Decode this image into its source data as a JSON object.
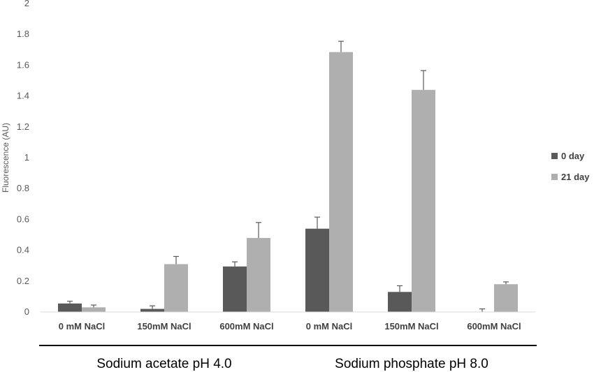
{
  "chart_data": {
    "type": "bar",
    "ylabel": "Fluorescence (AU)",
    "xlabel": "",
    "ylim": [
      0,
      2
    ],
    "yticks": [
      "0",
      "0.2",
      "0.4",
      "0.6",
      "0.8",
      "1",
      "1.2",
      "1.4",
      "1.6",
      "1.8",
      "2"
    ],
    "categories": [
      "0 mM NaCl",
      "150mM NaCl",
      "600mM NaCl",
      "0 mM NaCl",
      "150mM NaCl",
      "600mM NaCl"
    ],
    "groups": [
      {
        "label": "Sodium acetate pH 4.0",
        "start": 0,
        "end": 2
      },
      {
        "label": "Sodium phosphate pH 8.0",
        "start": 3,
        "end": 5
      }
    ],
    "series": [
      {
        "name": "0 day",
        "color": "#595959",
        "values": [
          0.055,
          0.02,
          0.295,
          0.54,
          0.13,
          0.0
        ],
        "errors": [
          0.015,
          0.02,
          0.03,
          0.075,
          0.04,
          0.02
        ]
      },
      {
        "name": "21 day",
        "color": "#afafaf",
        "values": [
          0.03,
          0.31,
          0.48,
          1.685,
          1.44,
          0.18
        ],
        "errors": [
          0.015,
          0.05,
          0.1,
          0.07,
          0.125,
          0.015
        ]
      }
    ],
    "grid": false,
    "legend": "right"
  }
}
